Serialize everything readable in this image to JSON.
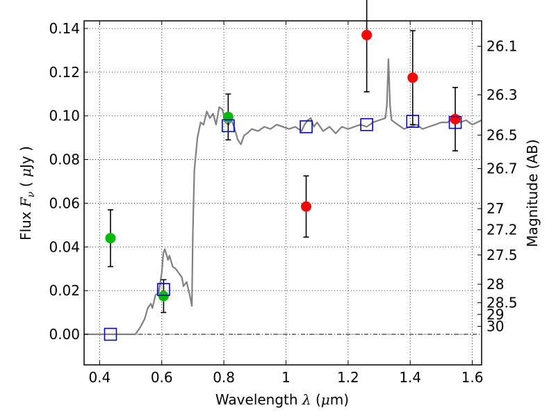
{
  "chart_data": {
    "type": "scatter",
    "xlabel": "Wavelength  λ (μm)",
    "xlabel_parts": {
      "prefix": "Wavelength  ",
      "symbol": "λ",
      "suffix": " (",
      "mu": "μ",
      "unit": "m)"
    },
    "ylabel_parts": {
      "prefix": "Flux  ",
      "symbol": "F",
      "sub": "ν",
      "mid": "  (  ",
      "mu": "μ",
      "unit": "Jy )"
    },
    "y2label": "Magnitude (AB)",
    "xlim": [
      0.35,
      1.63
    ],
    "ylim": [
      -0.014,
      0.1435
    ],
    "grid": true,
    "x_ticks": [
      {
        "value": 0.4,
        "label": "0.4"
      },
      {
        "value": 0.6,
        "label": "0.6"
      },
      {
        "value": 0.8,
        "label": "0.8"
      },
      {
        "value": 1.0,
        "label": "1"
      },
      {
        "value": 1.2,
        "label": "1.2"
      },
      {
        "value": 1.4,
        "label": "1.4"
      },
      {
        "value": 1.6,
        "label": "1.6"
      }
    ],
    "y_ticks": [
      {
        "value": 0.0,
        "label": "0.00"
      },
      {
        "value": 0.02,
        "label": "0.02"
      },
      {
        "value": 0.04,
        "label": "0.04"
      },
      {
        "value": 0.06,
        "label": "0.06"
      },
      {
        "value": 0.08,
        "label": "0.08"
      },
      {
        "value": 0.1,
        "label": "0.10"
      },
      {
        "value": 0.12,
        "label": "0.12"
      },
      {
        "value": 0.14,
        "label": "0.14"
      }
    ],
    "y2_ticks": [
      {
        "mag": 26.1,
        "label": "26.1"
      },
      {
        "mag": 26.3,
        "label": "26.3"
      },
      {
        "mag": 26.5,
        "label": "26.5"
      },
      {
        "mag": 26.7,
        "label": "26.7"
      },
      {
        "mag": 27.0,
        "label": "27"
      },
      {
        "mag": 27.2,
        "label": "27.2"
      },
      {
        "mag": 27.5,
        "label": "27.5"
      },
      {
        "mag": 28.0,
        "label": "28"
      },
      {
        "mag": 28.5,
        "label": "28.5"
      },
      {
        "mag": 29.0,
        "label": "29"
      },
      {
        "mag": 30.0,
        "label": "30"
      }
    ],
    "colors": {
      "model": "#808080",
      "green_points": "#00bb00",
      "red_points": "#ff0000",
      "model_photometry": "#0000cc",
      "errorbar": "#000000"
    },
    "series": [
      {
        "kind": "line",
        "points": [
          [
            0.35,
            0.0
          ],
          [
            0.515,
            0.0
          ],
          [
            0.53,
            0.003
          ],
          [
            0.545,
            0.007
          ],
          [
            0.555,
            0.012
          ],
          [
            0.565,
            0.014
          ],
          [
            0.57,
            0.012
          ],
          [
            0.58,
            0.018
          ],
          [
            0.59,
            0.019
          ],
          [
            0.6,
            0.028
          ],
          [
            0.605,
            0.037
          ],
          [
            0.61,
            0.039
          ],
          [
            0.62,
            0.034
          ],
          [
            0.625,
            0.036
          ],
          [
            0.635,
            0.031
          ],
          [
            0.645,
            0.03
          ],
          [
            0.655,
            0.028
          ],
          [
            0.665,
            0.026
          ],
          [
            0.67,
            0.022
          ],
          [
            0.68,
            0.024
          ],
          [
            0.69,
            0.018
          ],
          [
            0.697,
            0.013
          ],
          [
            0.7,
            0.045
          ],
          [
            0.705,
            0.075
          ],
          [
            0.715,
            0.09
          ],
          [
            0.725,
            0.097
          ],
          [
            0.735,
            0.096
          ],
          [
            0.745,
            0.102
          ],
          [
            0.755,
            0.099
          ],
          [
            0.765,
            0.101
          ],
          [
            0.775,
            0.096
          ],
          [
            0.785,
            0.104
          ],
          [
            0.795,
            0.103
          ],
          [
            0.805,
            0.097
          ],
          [
            0.815,
            0.096
          ],
          [
            0.825,
            0.098
          ],
          [
            0.835,
            0.094
          ],
          [
            0.845,
            0.089
          ],
          [
            0.855,
            0.087
          ],
          [
            0.865,
            0.091
          ],
          [
            0.875,
            0.092
          ],
          [
            0.89,
            0.094
          ],
          [
            0.91,
            0.093
          ],
          [
            0.93,
            0.095
          ],
          [
            0.95,
            0.094
          ],
          [
            0.97,
            0.096
          ],
          [
            0.99,
            0.095
          ],
          [
            1.01,
            0.094
          ],
          [
            1.03,
            0.095
          ],
          [
            1.05,
            0.093
          ],
          [
            1.06,
            0.096
          ],
          [
            1.07,
            0.098
          ],
          [
            1.08,
            0.099
          ],
          [
            1.09,
            0.095
          ],
          [
            1.1,
            0.097
          ],
          [
            1.12,
            0.093
          ],
          [
            1.14,
            0.095
          ],
          [
            1.16,
            0.092
          ],
          [
            1.18,
            0.095
          ],
          [
            1.2,
            0.094
          ],
          [
            1.22,
            0.095
          ],
          [
            1.24,
            0.096
          ],
          [
            1.26,
            0.095
          ],
          [
            1.28,
            0.097
          ],
          [
            1.3,
            0.098
          ],
          [
            1.32,
            0.099
          ],
          [
            1.325,
            0.105
          ],
          [
            1.33,
            0.126
          ],
          [
            1.335,
            0.105
          ],
          [
            1.34,
            0.098
          ],
          [
            1.36,
            0.096
          ],
          [
            1.38,
            0.094
          ],
          [
            1.4,
            0.095
          ],
          [
            1.42,
            0.096
          ],
          [
            1.44,
            0.094
          ],
          [
            1.46,
            0.095
          ],
          [
            1.48,
            0.096
          ],
          [
            1.5,
            0.097
          ],
          [
            1.52,
            0.097
          ],
          [
            1.54,
            0.099
          ],
          [
            1.56,
            0.097
          ],
          [
            1.58,
            0.098
          ],
          [
            1.6,
            0.096
          ],
          [
            1.63,
            0.098
          ]
        ]
      },
      {
        "kind": "points",
        "marker": "filled-circle",
        "color": "green",
        "points": [
          {
            "x": 0.435,
            "y": 0.044,
            "err": 0.013
          },
          {
            "x": 0.606,
            "y": 0.0175,
            "err": 0.0075
          },
          {
            "x": 0.814,
            "y": 0.0995,
            "err": 0.0105
          }
        ]
      },
      {
        "kind": "points",
        "marker": "filled-circle",
        "color": "red",
        "points": [
          {
            "x": 1.065,
            "y": 0.0585,
            "err": 0.014
          },
          {
            "x": 1.26,
            "y": 0.137,
            "err": 0.026
          },
          {
            "x": 1.408,
            "y": 0.1175,
            "err": 0.0215
          },
          {
            "x": 1.545,
            "y": 0.0985,
            "err": 0.0145
          }
        ]
      },
      {
        "kind": "points",
        "marker": "open-square",
        "color": "blue",
        "points": [
          {
            "x": 0.435,
            "y": 0.0
          },
          {
            "x": 0.606,
            "y": 0.0205
          },
          {
            "x": 0.814,
            "y": 0.0955
          },
          {
            "x": 1.065,
            "y": 0.095
          },
          {
            "x": 1.26,
            "y": 0.096
          },
          {
            "x": 1.408,
            "y": 0.0975
          },
          {
            "x": 1.545,
            "y": 0.097
          }
        ]
      }
    ]
  }
}
